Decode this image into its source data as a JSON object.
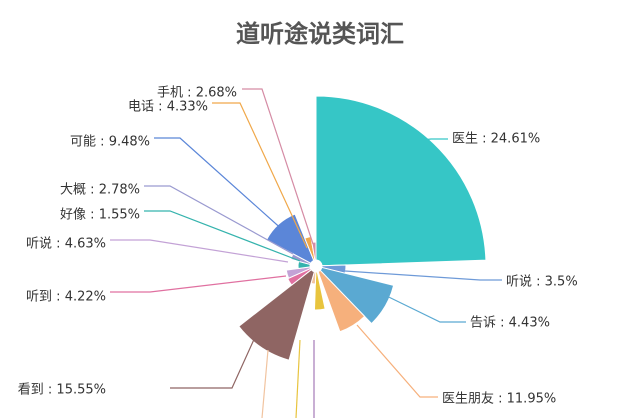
{
  "chart_data": {
    "type": "pie",
    "variant": "rose",
    "title": "道听途说类词汇",
    "slices": [
      {
        "name": "医生",
        "value": 24.61,
        "label": "医生 : 24.61%",
        "color": "#36c6c6"
      },
      {
        "name": "听说",
        "value": 3.5,
        "label": "听说 : 3.5%",
        "color": "#6e9ad8"
      },
      {
        "name": "告诉",
        "value": 4.43,
        "label": "告诉 : 4.43%",
        "color": "#5aa9d2"
      },
      {
        "name": "医生朋友",
        "value": 11.95,
        "label": "医生朋友 : 11.95%",
        "color": "#f6b07c"
      },
      {
        "name": "",
        "value": 0,
        "label": "",
        "color": "#a57ab8"
      },
      {
        "name": "",
        "value": 0,
        "label": "",
        "color": "#e8c43e"
      },
      {
        "name": "",
        "value": 0,
        "label": "",
        "color": "#f1c4a0"
      },
      {
        "name": "看到",
        "value": 15.55,
        "label": "看到 : 15.55%",
        "color": "#8f6563"
      },
      {
        "name": "听到",
        "value": 4.22,
        "label": "听到 : 4.22%",
        "color": "#e070a0"
      },
      {
        "name": "听说",
        "value": 4.63,
        "label": "听说 : 4.63%",
        "color": "#c3a2d6"
      },
      {
        "name": "好像",
        "value": 1.55,
        "label": "好像 : 1.55%",
        "color": "#35b3ad"
      },
      {
        "name": "大概",
        "value": 2.78,
        "label": "大概 : 2.78%",
        "color": "#9a9ad0"
      },
      {
        "name": "可能",
        "value": 9.48,
        "label": "可能 : 9.48%",
        "color": "#5b86d8"
      },
      {
        "name": "电话",
        "value": 4.33,
        "label": "电话 : 4.33%",
        "color": "#f0a84a"
      },
      {
        "name": "手机",
        "value": 2.68,
        "label": "手机 : 2.68%",
        "color": "#d58ca5"
      }
    ]
  }
}
